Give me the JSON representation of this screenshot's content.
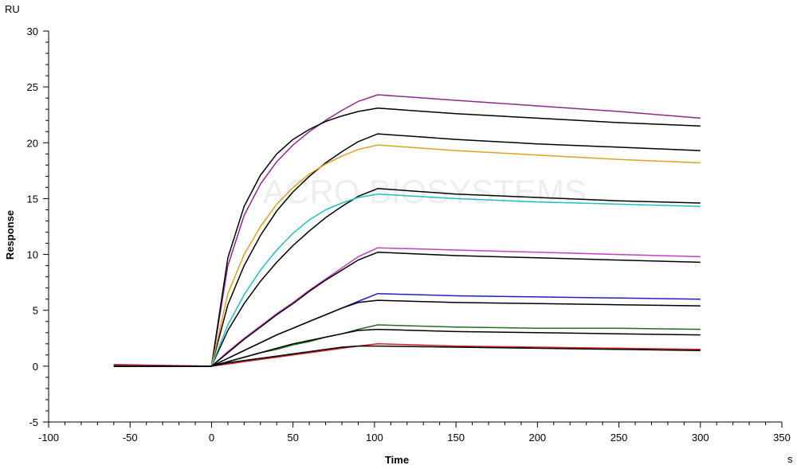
{
  "chart_data": {
    "type": "line",
    "xlabel": "Time",
    "ylabel": "Response",
    "x_unit": "s",
    "y_unit": "RU",
    "xlim": [
      -100,
      350
    ],
    "ylim": [
      -5,
      30
    ],
    "x_ticks": [
      -100,
      -50,
      0,
      50,
      100,
      150,
      200,
      250,
      300,
      350
    ],
    "y_ticks": [
      -5,
      0,
      5,
      10,
      15,
      20,
      25,
      30
    ],
    "grid": false,
    "watermark": "ACRO BIOSYSTEMS",
    "series": [
      {
        "color": "#8b2a8b",
        "points": [
          [
            -60,
            0.15
          ],
          [
            0,
            0
          ],
          [
            10,
            9
          ],
          [
            20,
            13.5
          ],
          [
            30,
            16.3
          ],
          [
            40,
            18.3
          ],
          [
            50,
            19.8
          ],
          [
            60,
            21
          ],
          [
            70,
            22
          ],
          [
            80,
            22.9
          ],
          [
            90,
            23.7
          ],
          [
            102,
            24.3
          ],
          [
            150,
            23.8
          ],
          [
            200,
            23.3
          ],
          [
            250,
            22.8
          ],
          [
            300,
            22.2
          ]
        ]
      },
      {
        "color": "#000000",
        "points": [
          [
            -60,
            0
          ],
          [
            0,
            0
          ],
          [
            10,
            9.7
          ],
          [
            20,
            14.3
          ],
          [
            30,
            17.1
          ],
          [
            40,
            19
          ],
          [
            50,
            20.3
          ],
          [
            60,
            21.2
          ],
          [
            70,
            21.9
          ],
          [
            80,
            22.4
          ],
          [
            90,
            22.8
          ],
          [
            102,
            23.1
          ],
          [
            150,
            22.6
          ],
          [
            200,
            22.2
          ],
          [
            250,
            21.8
          ],
          [
            300,
            21.5
          ]
        ]
      },
      {
        "color": "#000000",
        "points": [
          [
            -60,
            0
          ],
          [
            0,
            0
          ],
          [
            10,
            5.5
          ],
          [
            20,
            9
          ],
          [
            30,
            11.7
          ],
          [
            40,
            13.9
          ],
          [
            50,
            15.6
          ],
          [
            60,
            17
          ],
          [
            70,
            18.2
          ],
          [
            80,
            19.2
          ],
          [
            90,
            20.1
          ],
          [
            102,
            20.8
          ],
          [
            150,
            20.3
          ],
          [
            200,
            19.9
          ],
          [
            250,
            19.6
          ],
          [
            300,
            19.3
          ]
        ]
      },
      {
        "color": "#e0a020",
        "points": [
          [
            -60,
            0
          ],
          [
            0,
            0
          ],
          [
            10,
            6.5
          ],
          [
            20,
            10
          ],
          [
            30,
            12.5
          ],
          [
            40,
            14.5
          ],
          [
            50,
            16
          ],
          [
            60,
            17.2
          ],
          [
            70,
            18.1
          ],
          [
            80,
            18.8
          ],
          [
            90,
            19.4
          ],
          [
            102,
            19.8
          ],
          [
            150,
            19.3
          ],
          [
            200,
            18.9
          ],
          [
            250,
            18.5
          ],
          [
            300,
            18.2
          ]
        ]
      },
      {
        "color": "#000000",
        "points": [
          [
            -60,
            0
          ],
          [
            0,
            0
          ],
          [
            10,
            3.2
          ],
          [
            20,
            5.6
          ],
          [
            30,
            7.6
          ],
          [
            40,
            9.3
          ],
          [
            50,
            10.8
          ],
          [
            60,
            12.1
          ],
          [
            70,
            13.3
          ],
          [
            80,
            14.3
          ],
          [
            90,
            15.2
          ],
          [
            102,
            15.9
          ],
          [
            150,
            15.4
          ],
          [
            200,
            15.1
          ],
          [
            250,
            14.8
          ],
          [
            300,
            14.6
          ]
        ]
      },
      {
        "color": "#20c0c0",
        "points": [
          [
            -60,
            0
          ],
          [
            0,
            0
          ],
          [
            10,
            3.7
          ],
          [
            20,
            6.4
          ],
          [
            30,
            8.6
          ],
          [
            40,
            10.4
          ],
          [
            50,
            11.9
          ],
          [
            60,
            13.1
          ],
          [
            70,
            14
          ],
          [
            80,
            14.6
          ],
          [
            90,
            15.1
          ],
          [
            102,
            15.4
          ],
          [
            150,
            15
          ],
          [
            200,
            14.7
          ],
          [
            250,
            14.5
          ],
          [
            300,
            14.3
          ]
        ]
      },
      {
        "color": "#c040c0",
        "points": [
          [
            -60,
            0
          ],
          [
            0,
            0
          ],
          [
            10,
            1.3
          ],
          [
            20,
            2.5
          ],
          [
            30,
            3.6
          ],
          [
            40,
            4.7
          ],
          [
            50,
            5.7
          ],
          [
            60,
            6.8
          ],
          [
            70,
            7.8
          ],
          [
            80,
            8.8
          ],
          [
            90,
            9.8
          ],
          [
            102,
            10.6
          ],
          [
            150,
            10.4
          ],
          [
            200,
            10.2
          ],
          [
            250,
            10
          ],
          [
            300,
            9.8
          ]
        ]
      },
      {
        "color": "#000000",
        "points": [
          [
            -60,
            0
          ],
          [
            0,
            0
          ],
          [
            10,
            1.2
          ],
          [
            20,
            2.4
          ],
          [
            30,
            3.5
          ],
          [
            40,
            4.6
          ],
          [
            50,
            5.6
          ],
          [
            60,
            6.7
          ],
          [
            70,
            7.7
          ],
          [
            80,
            8.6
          ],
          [
            90,
            9.5
          ],
          [
            102,
            10.2
          ],
          [
            150,
            9.9
          ],
          [
            200,
            9.7
          ],
          [
            250,
            9.5
          ],
          [
            300,
            9.3
          ]
        ]
      },
      {
        "color": "#2020c0",
        "points": [
          [
            -60,
            0
          ],
          [
            0,
            0
          ],
          [
            10,
            0.7
          ],
          [
            20,
            1.4
          ],
          [
            30,
            2.1
          ],
          [
            40,
            2.8
          ],
          [
            50,
            3.4
          ],
          [
            60,
            4
          ],
          [
            70,
            4.6
          ],
          [
            80,
            5.2
          ],
          [
            90,
            5.8
          ],
          [
            102,
            6.5
          ],
          [
            150,
            6.3
          ],
          [
            200,
            6.2
          ],
          [
            250,
            6.1
          ],
          [
            300,
            6
          ]
        ]
      },
      {
        "color": "#000000",
        "points": [
          [
            -60,
            0
          ],
          [
            0,
            0
          ],
          [
            10,
            0.7
          ],
          [
            20,
            1.4
          ],
          [
            30,
            2.1
          ],
          [
            40,
            2.8
          ],
          [
            50,
            3.4
          ],
          [
            60,
            4
          ],
          [
            70,
            4.6
          ],
          [
            80,
            5.2
          ],
          [
            90,
            5.7
          ],
          [
            102,
            5.9
          ],
          [
            150,
            5.7
          ],
          [
            200,
            5.6
          ],
          [
            250,
            5.5
          ],
          [
            300,
            5.4
          ]
        ]
      },
      {
        "color": "#207020",
        "points": [
          [
            -60,
            0
          ],
          [
            0,
            0
          ],
          [
            10,
            0.4
          ],
          [
            20,
            0.8
          ],
          [
            30,
            1.2
          ],
          [
            40,
            1.5
          ],
          [
            50,
            1.9
          ],
          [
            60,
            2.2
          ],
          [
            70,
            2.6
          ],
          [
            80,
            2.9
          ],
          [
            90,
            3.3
          ],
          [
            102,
            3.7
          ],
          [
            150,
            3.5
          ],
          [
            200,
            3.4
          ],
          [
            250,
            3.4
          ],
          [
            300,
            3.3
          ]
        ]
      },
      {
        "color": "#000000",
        "points": [
          [
            -60,
            0
          ],
          [
            0,
            0
          ],
          [
            10,
            0.4
          ],
          [
            20,
            0.8
          ],
          [
            30,
            1.2
          ],
          [
            40,
            1.6
          ],
          [
            50,
            2
          ],
          [
            60,
            2.3
          ],
          [
            70,
            2.6
          ],
          [
            80,
            2.9
          ],
          [
            90,
            3.2
          ],
          [
            102,
            3.3
          ],
          [
            150,
            3.1
          ],
          [
            200,
            3
          ],
          [
            250,
            2.9
          ],
          [
            300,
            2.8
          ]
        ]
      },
      {
        "color": "#d02020",
        "points": [
          [
            -60,
            0.1
          ],
          [
            0,
            0
          ],
          [
            10,
            0.2
          ],
          [
            20,
            0.4
          ],
          [
            30,
            0.6
          ],
          [
            40,
            0.8
          ],
          [
            50,
            1
          ],
          [
            60,
            1.2
          ],
          [
            70,
            1.4
          ],
          [
            80,
            1.6
          ],
          [
            90,
            1.8
          ],
          [
            102,
            2
          ],
          [
            150,
            1.8
          ],
          [
            200,
            1.7
          ],
          [
            250,
            1.6
          ],
          [
            300,
            1.5
          ]
        ]
      },
      {
        "color": "#000000",
        "points": [
          [
            -60,
            0
          ],
          [
            0,
            0
          ],
          [
            10,
            0.3
          ],
          [
            20,
            0.5
          ],
          [
            30,
            0.7
          ],
          [
            40,
            0.9
          ],
          [
            50,
            1.1
          ],
          [
            60,
            1.3
          ],
          [
            70,
            1.5
          ],
          [
            80,
            1.7
          ],
          [
            90,
            1.8
          ],
          [
            102,
            1.8
          ],
          [
            150,
            1.7
          ],
          [
            200,
            1.6
          ],
          [
            250,
            1.5
          ],
          [
            300,
            1.4
          ]
        ]
      }
    ]
  }
}
